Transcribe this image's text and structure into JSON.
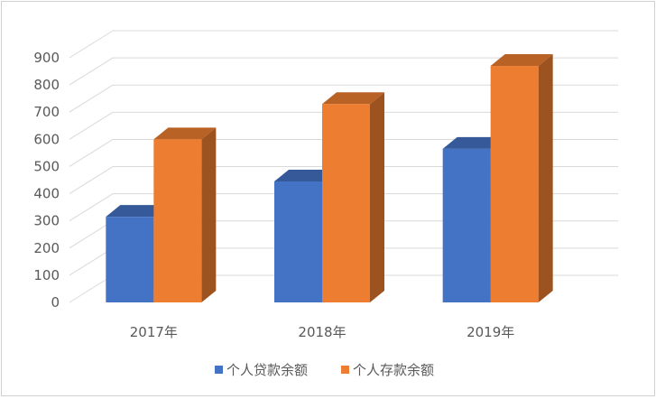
{
  "chart_data": {
    "type": "bar",
    "title": "",
    "xlabel": "",
    "ylabel": "",
    "categories": [
      "2017年",
      "2018年",
      "2019年"
    ],
    "series": [
      {
        "name": "个人贷款余额",
        "values": [
          315,
          445,
          565
        ],
        "color": "#4472C4"
      },
      {
        "name": "个人存款余额",
        "values": [
          600,
          730,
          870
        ],
        "color": "#ED7D31"
      }
    ],
    "ylim": [
      0,
      900
    ],
    "yticks": [
      0,
      100,
      200,
      300,
      400,
      500,
      600,
      700,
      800,
      900
    ],
    "grid": true,
    "legend": "bottom",
    "style": "3d-clustered-column"
  }
}
